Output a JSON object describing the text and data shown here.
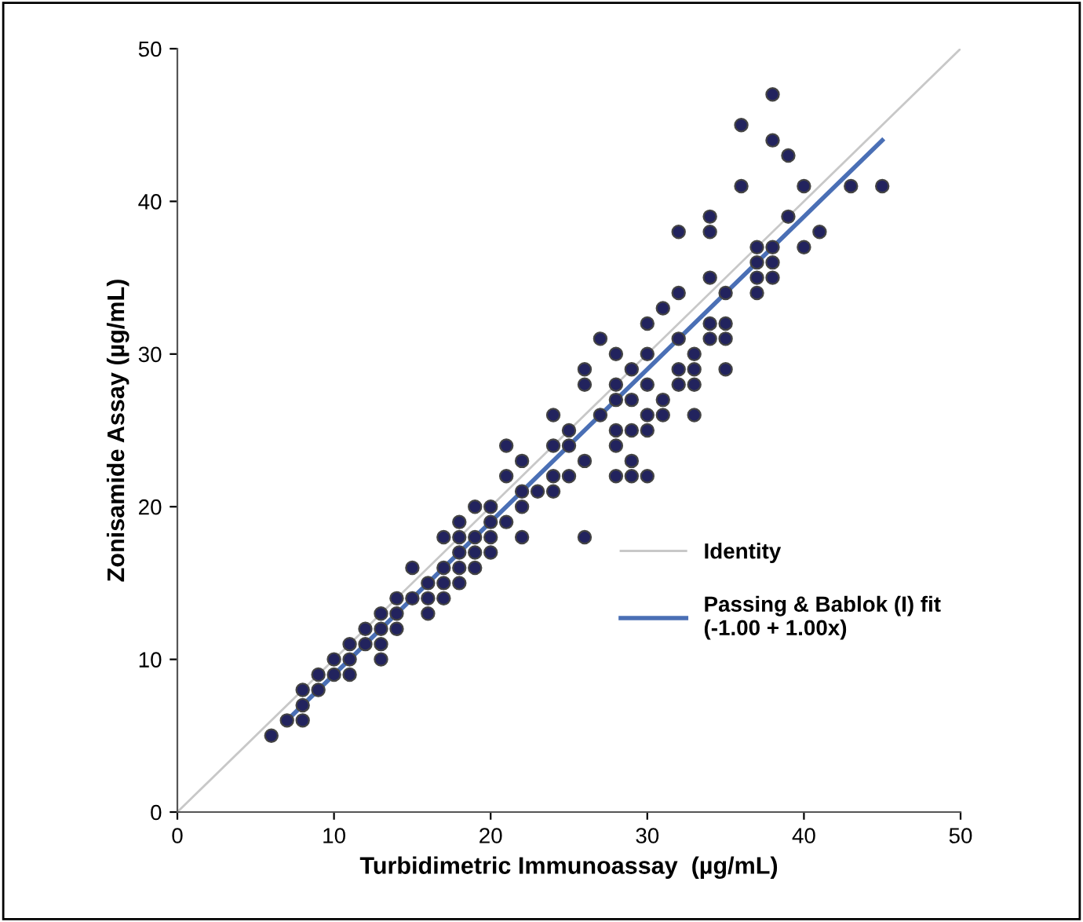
{
  "chart_data": {
    "type": "scatter",
    "xlabel": "Turbidimetric Immunoassay  (µg/mL)",
    "ylabel": "Zonisamide Assay (µg/mL)",
    "xlim": [
      0,
      50
    ],
    "ylim": [
      0,
      50
    ],
    "xticks": [
      0,
      10,
      20,
      30,
      40,
      50
    ],
    "yticks": [
      0,
      10,
      20,
      30,
      40,
      50
    ],
    "grid": false,
    "legend": "bottom right",
    "series": [
      {
        "marker": "circle",
        "color": "#22235e",
        "x": [
          6,
          7,
          8,
          8,
          8,
          9,
          9,
          10,
          10,
          11,
          11,
          11,
          12,
          12,
          13,
          13,
          13,
          13,
          14,
          14,
          14,
          15,
          15,
          16,
          16,
          16,
          17,
          17,
          17,
          17,
          18,
          18,
          18,
          18,
          18,
          19,
          19,
          19,
          19,
          20,
          20,
          20,
          20,
          21,
          21,
          21,
          22,
          22,
          22,
          22,
          23,
          24,
          24,
          24,
          24,
          25,
          25,
          25,
          26,
          26,
          26,
          26,
          27,
          27,
          28,
          28,
          28,
          28,
          28,
          28,
          29,
          29,
          29,
          29,
          29,
          30,
          30,
          30,
          30,
          30,
          30,
          31,
          31,
          31,
          32,
          32,
          32,
          32,
          32,
          33,
          33,
          33,
          33,
          34,
          34,
          34,
          34,
          34,
          35,
          35,
          35,
          35,
          36,
          36,
          37,
          37,
          37,
          37,
          38,
          38,
          38,
          38,
          38,
          39,
          39,
          40,
          40,
          41,
          43,
          45
        ],
        "values": [
          5,
          6,
          8,
          7,
          6,
          9,
          8,
          10,
          9,
          11,
          10,
          9,
          12,
          11,
          13,
          12,
          11,
          10,
          14,
          13,
          12,
          16,
          14,
          15,
          14,
          13,
          18,
          16,
          15,
          14,
          19,
          18,
          17,
          16,
          15,
          20,
          18,
          17,
          16,
          20,
          19,
          18,
          17,
          24,
          22,
          19,
          23,
          21,
          20,
          18,
          21,
          26,
          24,
          22,
          21,
          25,
          24,
          22,
          29,
          28,
          23,
          18,
          31,
          26,
          30,
          28,
          27,
          25,
          24,
          22,
          29,
          27,
          25,
          23,
          22,
          32,
          30,
          28,
          26,
          25,
          22,
          33,
          27,
          26,
          38,
          34,
          31,
          29,
          28,
          30,
          29,
          28,
          26,
          39,
          38,
          35,
          32,
          31,
          34,
          32,
          31,
          29,
          45,
          41,
          37,
          36,
          35,
          34,
          47,
          44,
          37,
          36,
          35,
          43,
          39,
          41,
          37,
          38,
          41,
          41
        ]
      },
      {
        "type": "line",
        "name": "Identity",
        "color": "#c8c8c8",
        "x": [
          0,
          50
        ],
        "values": [
          0,
          50
        ],
        "line_style": "solid"
      },
      {
        "type": "line",
        "name": "Passing & Bablok (I) fit\n(-1.00 + 1.00x)",
        "color": "#4a6fb5",
        "x": [
          7,
          45
        ],
        "values": [
          6,
          44
        ],
        "line_style": "solid"
      }
    ]
  }
}
